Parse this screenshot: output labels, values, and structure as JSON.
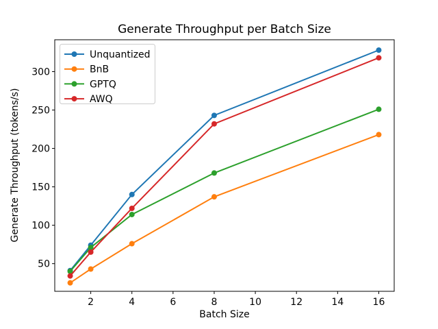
{
  "chart_data": {
    "type": "line",
    "title": "Generate Throughput per Batch Size",
    "xlabel": "Batch Size",
    "ylabel": "Generate Throughput (tokens/s)",
    "x": [
      1,
      2,
      4,
      8,
      16
    ],
    "series": [
      {
        "name": "Unquantized",
        "color": "#1f77b4",
        "values": [
          41,
          74,
          140,
          243,
          328
        ]
      },
      {
        "name": "BnB",
        "color": "#ff7f0e",
        "values": [
          25,
          43,
          76,
          137,
          218
        ]
      },
      {
        "name": "GPTQ",
        "color": "#2ca02c",
        "values": [
          40,
          71,
          114,
          168,
          251
        ]
      },
      {
        "name": "AWQ",
        "color": "#d62728",
        "values": [
          34,
          65,
          122,
          232,
          318
        ]
      }
    ],
    "marker": "o",
    "grid": false,
    "xticks": [
      2,
      4,
      6,
      8,
      10,
      12,
      14,
      16
    ],
    "yticks": [
      50,
      100,
      150,
      200,
      250,
      300
    ],
    "xlim": [
      0.25,
      16.75
    ],
    "ylim": [
      14,
      341.5
    ],
    "legend": {
      "position": "upper left",
      "entries": [
        "Unquantized",
        "BnB",
        "GPTQ",
        "AWQ"
      ]
    },
    "colors": {
      "spine": "#000000",
      "background": "#ffffff",
      "legend_border": "#cccccc"
    }
  }
}
